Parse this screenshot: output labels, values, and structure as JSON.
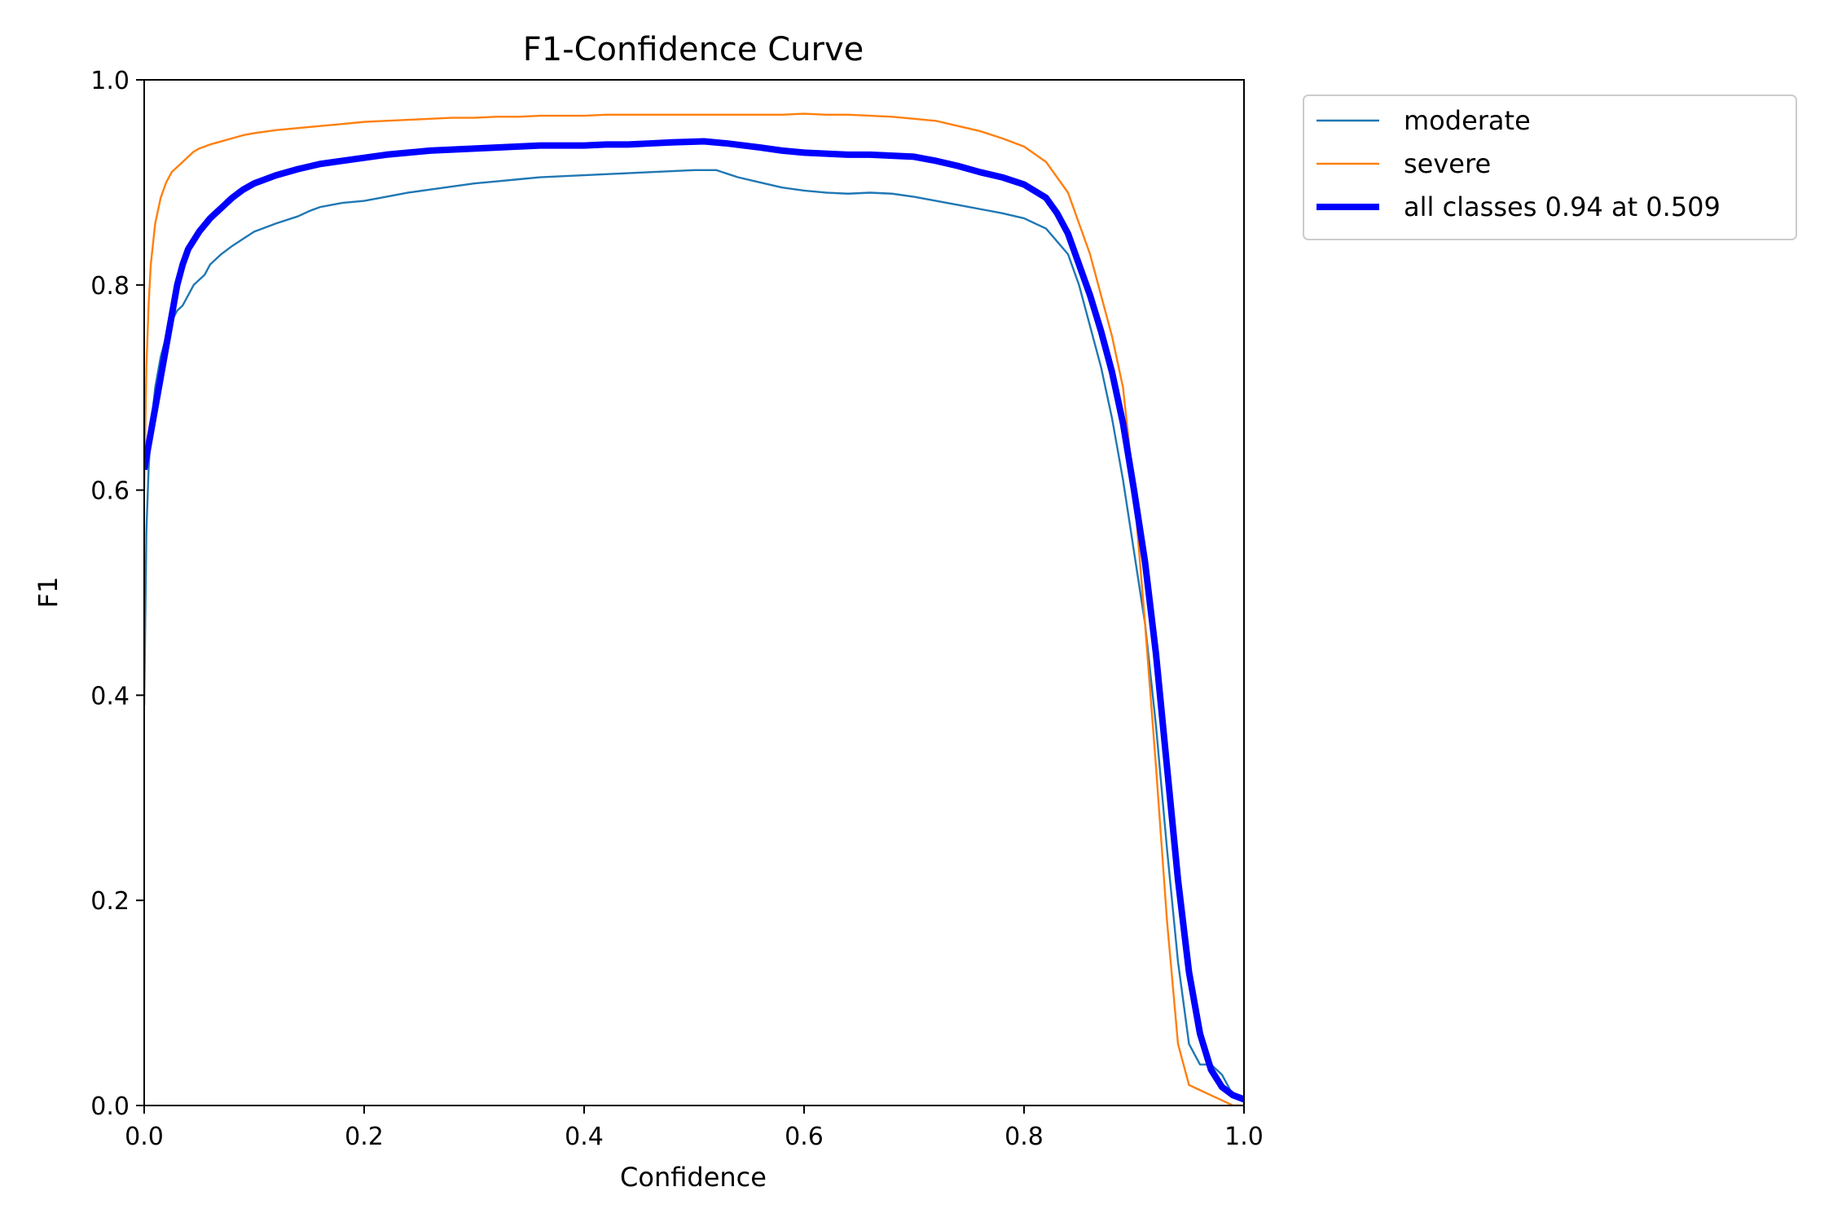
{
  "chart_data": {
    "type": "line",
    "title": "F1-Confidence Curve",
    "xlabel": "Confidence",
    "ylabel": "F1",
    "xlim": [
      0.0,
      1.0
    ],
    "ylim": [
      0.0,
      1.0
    ],
    "xticks": [
      0.0,
      0.2,
      0.4,
      0.6,
      0.8,
      1.0
    ],
    "xtick_labels": [
      "0.0",
      "0.2",
      "0.4",
      "0.6",
      "0.8",
      "1.0"
    ],
    "yticks": [
      0.0,
      0.2,
      0.4,
      0.6,
      0.8,
      1.0
    ],
    "ytick_labels": [
      "0.0",
      "0.2",
      "0.4",
      "0.6",
      "0.8",
      "1.0"
    ],
    "grid": false,
    "legend_position": "outside-top-right",
    "series": [
      {
        "name": "moderate",
        "color": "#1f77b4",
        "width": "thin",
        "x": [
          0.0,
          0.002,
          0.004,
          0.006,
          0.01,
          0.015,
          0.02,
          0.025,
          0.03,
          0.035,
          0.04,
          0.045,
          0.05,
          0.055,
          0.06,
          0.07,
          0.08,
          0.09,
          0.1,
          0.12,
          0.14,
          0.15,
          0.16,
          0.18,
          0.2,
          0.22,
          0.24,
          0.26,
          0.28,
          0.3,
          0.32,
          0.34,
          0.36,
          0.38,
          0.4,
          0.42,
          0.44,
          0.46,
          0.48,
          0.5,
          0.52,
          0.54,
          0.56,
          0.58,
          0.6,
          0.62,
          0.64,
          0.66,
          0.68,
          0.7,
          0.72,
          0.74,
          0.76,
          0.78,
          0.8,
          0.82,
          0.84,
          0.85,
          0.86,
          0.87,
          0.88,
          0.89,
          0.9,
          0.91,
          0.92,
          0.93,
          0.94,
          0.95,
          0.96,
          0.97,
          0.98,
          0.99,
          1.0
        ],
        "y": [
          0.39,
          0.56,
          0.62,
          0.66,
          0.7,
          0.73,
          0.75,
          0.765,
          0.775,
          0.78,
          0.79,
          0.8,
          0.805,
          0.81,
          0.82,
          0.83,
          0.838,
          0.845,
          0.852,
          0.86,
          0.867,
          0.872,
          0.876,
          0.88,
          0.882,
          0.886,
          0.89,
          0.893,
          0.896,
          0.899,
          0.901,
          0.903,
          0.905,
          0.906,
          0.907,
          0.908,
          0.909,
          0.91,
          0.911,
          0.912,
          0.912,
          0.905,
          0.9,
          0.895,
          0.892,
          0.89,
          0.889,
          0.89,
          0.889,
          0.886,
          0.882,
          0.878,
          0.874,
          0.87,
          0.865,
          0.855,
          0.83,
          0.8,
          0.76,
          0.72,
          0.67,
          0.61,
          0.54,
          0.47,
          0.37,
          0.25,
          0.14,
          0.06,
          0.04,
          0.04,
          0.03,
          0.01,
          0.005
        ]
      },
      {
        "name": "severe",
        "color": "#ff7f0e",
        "width": "thin",
        "x": [
          0.0,
          0.002,
          0.004,
          0.006,
          0.01,
          0.015,
          0.02,
          0.025,
          0.03,
          0.035,
          0.04,
          0.045,
          0.05,
          0.055,
          0.06,
          0.07,
          0.08,
          0.09,
          0.1,
          0.12,
          0.14,
          0.16,
          0.18,
          0.2,
          0.22,
          0.24,
          0.26,
          0.28,
          0.3,
          0.32,
          0.34,
          0.36,
          0.38,
          0.4,
          0.42,
          0.44,
          0.46,
          0.48,
          0.5,
          0.52,
          0.54,
          0.56,
          0.58,
          0.6,
          0.62,
          0.64,
          0.66,
          0.68,
          0.7,
          0.72,
          0.74,
          0.76,
          0.78,
          0.8,
          0.82,
          0.84,
          0.85,
          0.86,
          0.87,
          0.88,
          0.89,
          0.9,
          0.91,
          0.92,
          0.93,
          0.94,
          0.95,
          0.96,
          0.97,
          0.98,
          0.99,
          1.0
        ],
        "y": [
          0.6,
          0.72,
          0.78,
          0.82,
          0.86,
          0.885,
          0.9,
          0.91,
          0.915,
          0.92,
          0.925,
          0.93,
          0.933,
          0.935,
          0.937,
          0.94,
          0.943,
          0.946,
          0.948,
          0.951,
          0.953,
          0.955,
          0.957,
          0.959,
          0.96,
          0.961,
          0.962,
          0.963,
          0.963,
          0.964,
          0.964,
          0.965,
          0.965,
          0.965,
          0.966,
          0.966,
          0.966,
          0.966,
          0.966,
          0.966,
          0.966,
          0.966,
          0.966,
          0.967,
          0.966,
          0.966,
          0.965,
          0.964,
          0.962,
          0.96,
          0.955,
          0.95,
          0.943,
          0.935,
          0.92,
          0.89,
          0.86,
          0.83,
          0.79,
          0.75,
          0.7,
          0.6,
          0.47,
          0.33,
          0.18,
          0.06,
          0.02,
          0.015,
          0.01,
          0.005,
          0.0,
          0.0
        ]
      },
      {
        "name": "all classes 0.94 at 0.509",
        "color": "#0000ff",
        "width": "thick",
        "x": [
          0.0,
          0.005,
          0.01,
          0.015,
          0.02,
          0.025,
          0.03,
          0.035,
          0.04,
          0.05,
          0.06,
          0.07,
          0.08,
          0.09,
          0.1,
          0.12,
          0.14,
          0.16,
          0.18,
          0.2,
          0.22,
          0.24,
          0.26,
          0.28,
          0.3,
          0.32,
          0.34,
          0.36,
          0.38,
          0.4,
          0.42,
          0.44,
          0.46,
          0.48,
          0.509,
          0.53,
          0.56,
          0.58,
          0.6,
          0.62,
          0.64,
          0.66,
          0.68,
          0.7,
          0.72,
          0.74,
          0.76,
          0.78,
          0.8,
          0.82,
          0.83,
          0.84,
          0.85,
          0.86,
          0.87,
          0.88,
          0.89,
          0.9,
          0.91,
          0.92,
          0.93,
          0.94,
          0.95,
          0.96,
          0.97,
          0.98,
          0.99,
          1.0
        ],
        "y": [
          0.62,
          0.65,
          0.68,
          0.71,
          0.74,
          0.77,
          0.8,
          0.82,
          0.835,
          0.852,
          0.865,
          0.875,
          0.885,
          0.893,
          0.899,
          0.907,
          0.913,
          0.918,
          0.921,
          0.924,
          0.927,
          0.929,
          0.931,
          0.932,
          0.933,
          0.934,
          0.935,
          0.936,
          0.936,
          0.936,
          0.937,
          0.937,
          0.938,
          0.939,
          0.94,
          0.938,
          0.934,
          0.931,
          0.929,
          0.928,
          0.927,
          0.927,
          0.926,
          0.925,
          0.921,
          0.916,
          0.91,
          0.905,
          0.898,
          0.885,
          0.87,
          0.85,
          0.82,
          0.79,
          0.755,
          0.715,
          0.665,
          0.6,
          0.53,
          0.44,
          0.33,
          0.22,
          0.13,
          0.07,
          0.035,
          0.018,
          0.01,
          0.006
        ]
      }
    ]
  }
}
